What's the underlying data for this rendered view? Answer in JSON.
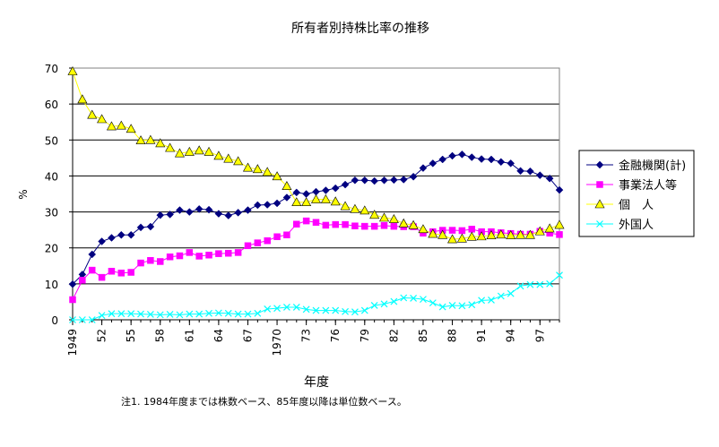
{
  "chart_data": {
    "type": "line",
    "title": "所有者別持株比率の推移",
    "xlabel": "年度",
    "ylabel": "%",
    "note": "注1. 1984年度までは株数ベース、85年度以降は単位数ベース。",
    "legend_position": "right",
    "grid": true,
    "ylim": [
      0,
      70
    ],
    "y_ticks": [
      "0",
      "10",
      "20",
      "30",
      "40",
      "50",
      "60",
      "70"
    ],
    "x_tick_labels": [
      "1949",
      "52",
      "55",
      "58",
      "61",
      "64",
      "67",
      "1970",
      "73",
      "76",
      "79",
      "82",
      "85",
      "88",
      "91",
      "94",
      "97"
    ],
    "x_tick_years": [
      1949,
      1952,
      1955,
      1958,
      1961,
      1964,
      1967,
      1970,
      1973,
      1976,
      1979,
      1982,
      1985,
      1988,
      1991,
      1994,
      1997
    ],
    "x_start": 1949,
    "x_end": 1999,
    "series": [
      {
        "name": "金融機関(計)",
        "color": "#000080",
        "marker": "diamond",
        "values": [
          9.9,
          12.6,
          18.2,
          21.8,
          22.8,
          23.6,
          23.6,
          25.7,
          25.9,
          29.1,
          29.3,
          30.5,
          30.0,
          30.8,
          30.6,
          29.5,
          29.0,
          29.8,
          30.5,
          31.9,
          32.0,
          32.4,
          34.0,
          35.4,
          35.0,
          35.6,
          36.0,
          36.6,
          37.6,
          38.8,
          38.8,
          38.6,
          38.8,
          38.9,
          39.0,
          39.8,
          42.2,
          43.5,
          44.6,
          45.6,
          46.0,
          45.2,
          44.7,
          44.6,
          43.9,
          43.5,
          41.4,
          41.3,
          40.2,
          39.3,
          36.1
        ]
      },
      {
        "name": "事業法人等",
        "color": "#ff00ff",
        "marker": "square",
        "values": [
          5.6,
          11.0,
          13.8,
          11.8,
          13.5,
          13.0,
          13.2,
          15.8,
          16.5,
          16.2,
          17.5,
          17.8,
          18.7,
          17.7,
          18.0,
          18.4,
          18.5,
          18.7,
          20.6,
          21.4,
          22.0,
          23.1,
          23.6,
          26.6,
          27.5,
          27.1,
          26.3,
          26.5,
          26.5,
          26.1,
          26.0,
          26.0,
          26.2,
          26.0,
          25.9,
          25.9,
          24.1,
          24.5,
          24.9,
          24.9,
          24.8,
          25.2,
          24.5,
          24.5,
          24.2,
          24.0,
          23.8,
          23.8,
          24.6,
          24.1,
          23.7
        ]
      },
      {
        "name": "個　人",
        "color": "#ffff00",
        "marker": "triangle",
        "values": [
          69.1,
          61.3,
          57.0,
          55.8,
          53.8,
          54.0,
          53.1,
          49.9,
          50.0,
          49.1,
          47.8,
          46.3,
          46.7,
          47.1,
          46.7,
          45.6,
          44.8,
          44.1,
          42.3,
          41.9,
          41.1,
          39.9,
          37.2,
          32.7,
          32.7,
          33.5,
          33.5,
          32.9,
          31.6,
          30.8,
          30.4,
          29.2,
          28.4,
          28.0,
          26.8,
          26.3,
          25.2,
          23.9,
          23.6,
          22.4,
          22.6,
          23.1,
          23.2,
          23.5,
          23.7,
          23.5,
          23.6,
          23.6,
          24.6,
          25.4,
          26.4
        ]
      },
      {
        "name": "外国人",
        "color": "#00ffff",
        "marker": "x",
        "values": [
          0,
          0,
          0,
          1.2,
          1.7,
          1.7,
          1.7,
          1.6,
          1.5,
          1.4,
          1.5,
          1.4,
          1.6,
          1.6,
          1.8,
          1.9,
          1.8,
          1.6,
          1.6,
          1.8,
          3.0,
          3.2,
          3.5,
          3.5,
          2.9,
          2.6,
          2.6,
          2.6,
          2.3,
          2.2,
          2.6,
          4.0,
          4.4,
          5.1,
          6.1,
          6.0,
          5.7,
          4.7,
          3.6,
          4.0,
          3.9,
          4.2,
          5.4,
          5.5,
          6.6,
          7.3,
          9.4,
          9.8,
          9.8,
          10.0,
          12.4
        ]
      }
    ]
  }
}
